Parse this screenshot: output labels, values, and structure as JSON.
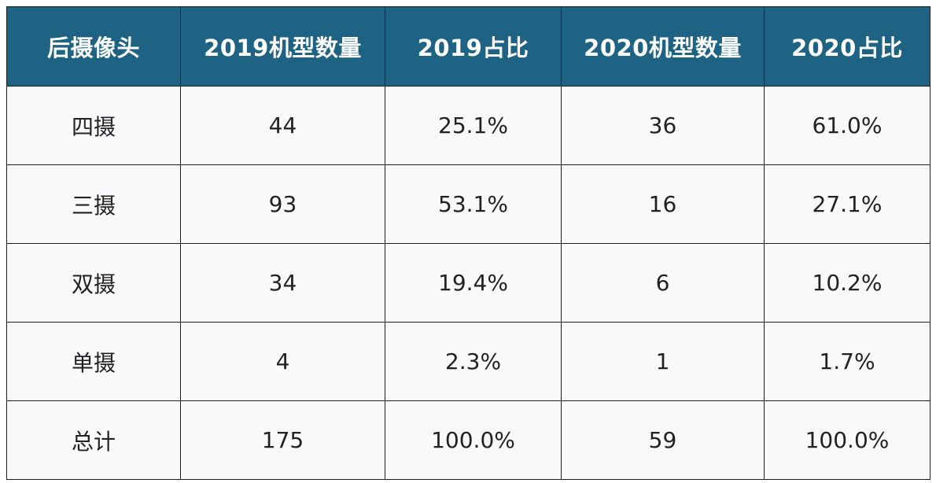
{
  "colors": {
    "header_bg": "#1e6284",
    "header_text": "#ffffff",
    "cell_bg": "#f9f9fb",
    "cell_text": "#222222",
    "border": "#1f1f1f"
  },
  "chart_data": {
    "type": "table",
    "columns": [
      "后摄像头",
      "2019机型数量",
      "2019占比",
      "2020机型数量",
      "2020占比"
    ],
    "rows": [
      [
        "四摄",
        "44",
        "25.1%",
        "36",
        "61.0%"
      ],
      [
        "三摄",
        "93",
        "53.1%",
        "16",
        "27.1%"
      ],
      [
        "双摄",
        "34",
        "19.4%",
        "6",
        "10.2%"
      ],
      [
        "单摄",
        "4",
        "2.3%",
        "1",
        "1.7%"
      ],
      [
        "总计",
        "175",
        "100.0%",
        "59",
        "100.0%"
      ]
    ]
  }
}
